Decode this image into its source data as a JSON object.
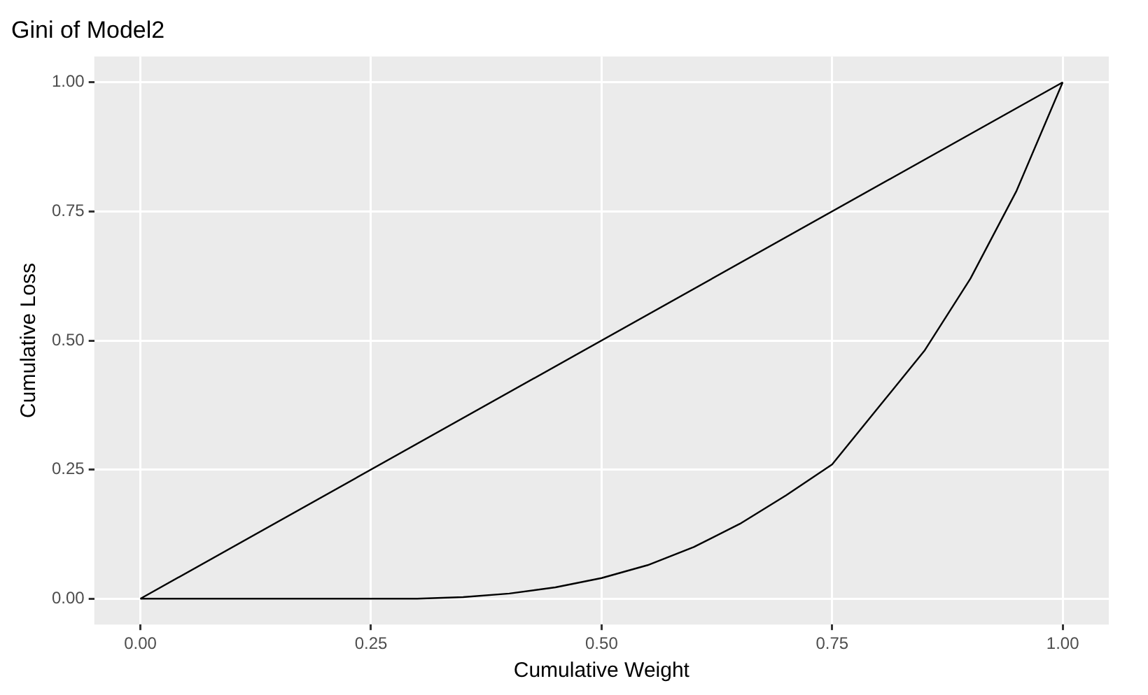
{
  "chart_data": {
    "type": "line",
    "title": "Gini of Model2",
    "xlabel": "Cumulative Weight",
    "ylabel": "Cumulative Loss",
    "xlim": [
      -0.05,
      1.05
    ],
    "ylim": [
      -0.05,
      1.05
    ],
    "xticks": [
      {
        "value": 0,
        "label": "0.00"
      },
      {
        "value": 0.25,
        "label": "0.25"
      },
      {
        "value": 0.5,
        "label": "0.50"
      },
      {
        "value": 0.75,
        "label": "0.75"
      },
      {
        "value": 1,
        "label": "1.00"
      }
    ],
    "yticks": [
      {
        "value": 0,
        "label": "0.00"
      },
      {
        "value": 0.25,
        "label": "0.25"
      },
      {
        "value": 0.5,
        "label": "0.50"
      },
      {
        "value": 0.75,
        "label": "0.75"
      },
      {
        "value": 1,
        "label": "1.00"
      }
    ],
    "grid": true,
    "legend": false,
    "marker": "none",
    "line_style": "solid",
    "series": [
      {
        "color": "#000000",
        "x": [
          0,
          1
        ],
        "values": [
          0,
          1
        ]
      },
      {
        "color": "#000000",
        "x": [
          0,
          0.1,
          0.2,
          0.3,
          0.35,
          0.4,
          0.45,
          0.5,
          0.55,
          0.6,
          0.65,
          0.7,
          0.75,
          0.8,
          0.85,
          0.9,
          0.95,
          1
        ],
        "values": [
          0,
          0,
          0,
          0,
          0.003,
          0.01,
          0.022,
          0.04,
          0.065,
          0.1,
          0.145,
          0.2,
          0.26,
          0.37,
          0.48,
          0.62,
          0.79,
          1
        ]
      }
    ]
  }
}
